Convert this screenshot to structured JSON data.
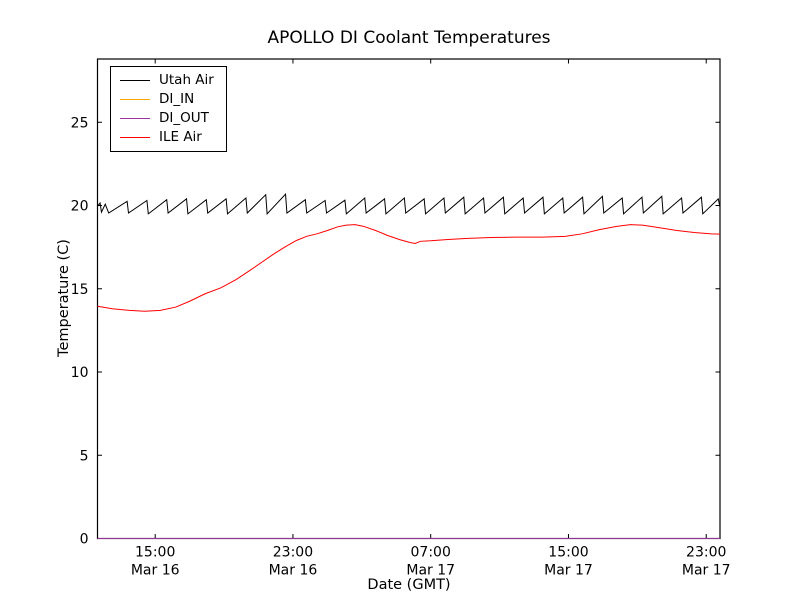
{
  "chart_data": {
    "type": "line",
    "title": "APOLLO DI Coolant Temperatures",
    "xlabel": "Date (GMT)",
    "ylabel": "Temperature (C)",
    "x_unit": "hours since Mar 16 00:00 GMT",
    "xlim": [
      11.65,
      47.8
    ],
    "ylim": [
      0,
      28.8
    ],
    "grid": false,
    "legend_position": "upper left",
    "y_ticks": [
      0,
      5,
      10,
      15,
      20,
      25
    ],
    "x_ticks": [
      {
        "t": 15,
        "line1": "15:00",
        "line2": "Mar 16"
      },
      {
        "t": 23,
        "line1": "23:00",
        "line2": "Mar 16"
      },
      {
        "t": 31,
        "line1": "07:00",
        "line2": "Mar 17"
      },
      {
        "t": 39,
        "line1": "15:00",
        "line2": "Mar 17"
      },
      {
        "t": 47,
        "line1": "23:00",
        "line2": "Mar 17"
      }
    ],
    "series": [
      {
        "name": "Utah Air",
        "color": "#000000",
        "points": [
          [
            11.65,
            19.95
          ],
          [
            11.8,
            20.15
          ],
          [
            11.88,
            19.6
          ],
          [
            12.1,
            20.08
          ],
          [
            12.3,
            19.55
          ],
          [
            13.37,
            20.25
          ],
          [
            13.45,
            19.55
          ],
          [
            14.52,
            20.3
          ],
          [
            14.6,
            19.5
          ],
          [
            15.67,
            20.35
          ],
          [
            15.75,
            19.55
          ],
          [
            16.82,
            20.4
          ],
          [
            16.9,
            19.5
          ],
          [
            17.97,
            20.35
          ],
          [
            18.05,
            19.55
          ],
          [
            19.12,
            20.4
          ],
          [
            19.2,
            19.5
          ],
          [
            20.27,
            20.45
          ],
          [
            20.35,
            19.55
          ],
          [
            21.42,
            20.65
          ],
          [
            21.5,
            19.5
          ],
          [
            22.57,
            20.68
          ],
          [
            22.65,
            19.55
          ],
          [
            23.72,
            20.35
          ],
          [
            23.8,
            19.55
          ],
          [
            24.87,
            20.3
          ],
          [
            24.95,
            19.55
          ],
          [
            26.02,
            20.32
          ],
          [
            26.1,
            19.5
          ],
          [
            27.17,
            20.45
          ],
          [
            27.25,
            19.55
          ],
          [
            28.32,
            20.4
          ],
          [
            28.4,
            19.5
          ],
          [
            29.47,
            20.45
          ],
          [
            29.55,
            19.55
          ],
          [
            30.62,
            20.4
          ],
          [
            30.7,
            19.5
          ],
          [
            31.77,
            20.45
          ],
          [
            31.85,
            19.55
          ],
          [
            32.92,
            20.5
          ],
          [
            33.0,
            19.5
          ],
          [
            34.07,
            20.45
          ],
          [
            34.15,
            19.55
          ],
          [
            35.22,
            20.5
          ],
          [
            35.3,
            19.5
          ],
          [
            36.37,
            20.45
          ],
          [
            36.45,
            19.55
          ],
          [
            37.52,
            20.5
          ],
          [
            37.6,
            19.5
          ],
          [
            38.67,
            20.45
          ],
          [
            38.75,
            19.55
          ],
          [
            39.82,
            20.5
          ],
          [
            39.9,
            19.5
          ],
          [
            40.97,
            20.55
          ],
          [
            41.05,
            19.55
          ],
          [
            42.12,
            20.45
          ],
          [
            42.2,
            19.5
          ],
          [
            43.27,
            20.5
          ],
          [
            43.35,
            19.55
          ],
          [
            44.42,
            20.55
          ],
          [
            44.5,
            19.5
          ],
          [
            45.57,
            20.45
          ],
          [
            45.65,
            19.55
          ],
          [
            46.72,
            20.5
          ],
          [
            46.8,
            19.5
          ],
          [
            47.7,
            20.4
          ],
          [
            47.8,
            19.9
          ]
        ]
      },
      {
        "name": "DI_IN",
        "color": "#ffa500",
        "points": [
          [
            11.65,
            0
          ],
          [
            47.8,
            0
          ]
        ]
      },
      {
        "name": "DI_OUT",
        "color": "#9933a0",
        "points": [
          [
            11.65,
            0
          ],
          [
            47.8,
            0
          ]
        ]
      },
      {
        "name": "ILE Air",
        "color": "#ff0000",
        "points": [
          [
            11.65,
            13.95
          ],
          [
            12.5,
            13.8
          ],
          [
            13.5,
            13.7
          ],
          [
            14.4,
            13.65
          ],
          [
            15.3,
            13.7
          ],
          [
            16.2,
            13.9
          ],
          [
            17.0,
            14.25
          ],
          [
            17.9,
            14.7
          ],
          [
            18.8,
            15.05
          ],
          [
            19.7,
            15.55
          ],
          [
            20.5,
            16.1
          ],
          [
            21.2,
            16.6
          ],
          [
            21.9,
            17.1
          ],
          [
            22.6,
            17.55
          ],
          [
            23.2,
            17.9
          ],
          [
            23.8,
            18.15
          ],
          [
            24.4,
            18.3
          ],
          [
            25.0,
            18.5
          ],
          [
            25.6,
            18.72
          ],
          [
            26.1,
            18.82
          ],
          [
            26.6,
            18.85
          ],
          [
            27.1,
            18.75
          ],
          [
            27.8,
            18.5
          ],
          [
            28.5,
            18.2
          ],
          [
            29.2,
            17.95
          ],
          [
            29.8,
            17.78
          ],
          [
            30.1,
            17.72
          ],
          [
            30.4,
            17.85
          ],
          [
            31.0,
            17.88
          ],
          [
            31.9,
            17.95
          ],
          [
            33.0,
            18.02
          ],
          [
            34.5,
            18.08
          ],
          [
            36.0,
            18.1
          ],
          [
            37.5,
            18.1
          ],
          [
            38.8,
            18.15
          ],
          [
            39.8,
            18.3
          ],
          [
            40.8,
            18.55
          ],
          [
            41.8,
            18.75
          ],
          [
            42.6,
            18.85
          ],
          [
            43.3,
            18.82
          ],
          [
            44.2,
            18.68
          ],
          [
            45.3,
            18.5
          ],
          [
            46.3,
            18.38
          ],
          [
            47.3,
            18.3
          ],
          [
            47.8,
            18.28
          ]
        ]
      }
    ]
  }
}
